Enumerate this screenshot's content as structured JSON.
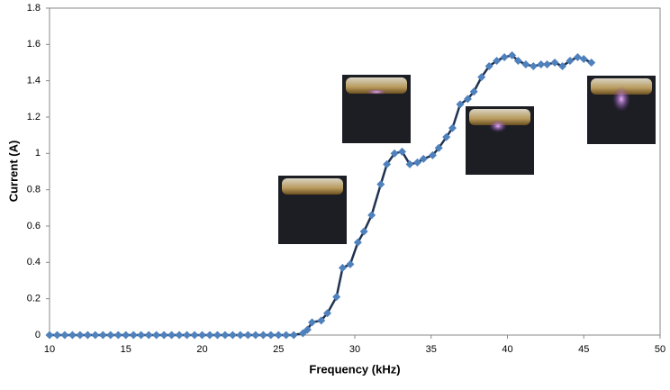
{
  "chart_data": {
    "type": "line",
    "x_label": "Frequency (kHz)",
    "y_label": "Current (A)",
    "x": [
      10,
      10.5,
      11,
      11.5,
      12,
      12.5,
      13,
      13.5,
      14,
      14.5,
      15,
      15.5,
      16,
      16.5,
      17,
      17.5,
      18,
      18.5,
      19,
      19.5,
      20,
      20.5,
      21,
      21.5,
      22,
      22.5,
      23,
      23.5,
      24,
      24.5,
      25,
      25.5,
      26,
      26.6,
      26.9,
      27.2,
      27.8,
      28.2,
      28.8,
      29.2,
      29.7,
      30.2,
      30.6,
      31.1,
      31.7,
      32.1,
      32.6,
      33.1,
      33.6,
      34.1,
      34.5,
      35.1,
      35.5,
      36.0,
      36.4,
      36.9,
      37.4,
      37.8,
      38.3,
      38.8,
      39.3,
      39.8,
      40.3,
      40.7,
      41.2,
      41.7,
      42.2,
      42.6,
      43.1,
      43.6,
      44.1,
      44.6,
      45.0,
      45.5
    ],
    "series": [
      {
        "color": "#4f81bd",
        "line_color": "#1f3350",
        "values": [
          0,
          0,
          0,
          0,
          0,
          0,
          0,
          0,
          0,
          0,
          0,
          0,
          0,
          0,
          0,
          0,
          0,
          0,
          0,
          0,
          0,
          0,
          0,
          0,
          0,
          0,
          0,
          0,
          0,
          0,
          0,
          0,
          0,
          0.01,
          0.03,
          0.07,
          0.08,
          0.12,
          0.21,
          0.37,
          0.39,
          0.51,
          0.57,
          0.66,
          0.83,
          0.94,
          1.0,
          1.01,
          0.94,
          0.95,
          0.97,
          0.99,
          1.03,
          1.09,
          1.14,
          1.27,
          1.3,
          1.34,
          1.42,
          1.48,
          1.51,
          1.53,
          1.54,
          1.51,
          1.49,
          1.48,
          1.49,
          1.49,
          1.5,
          1.48,
          1.51,
          1.53,
          1.52,
          1.5
        ]
      }
    ],
    "xlim": [
      10,
      50
    ],
    "xticks": [
      10,
      15,
      20,
      25,
      30,
      35,
      40,
      45,
      50
    ],
    "ylim": [
      0,
      1.8
    ],
    "yticks": [
      0,
      0.2,
      0.4,
      0.6,
      0.8,
      1,
      1.2,
      1.4,
      1.6,
      1.8
    ],
    "grid": false
  }
}
